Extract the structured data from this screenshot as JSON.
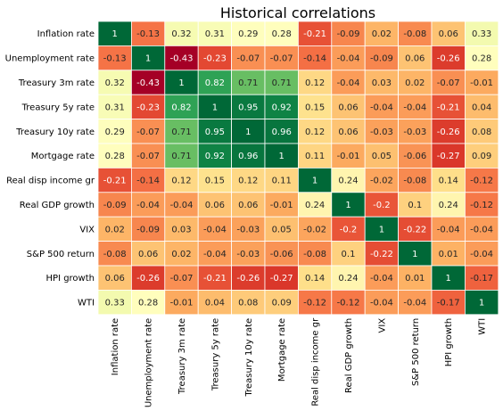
{
  "chart_data": {
    "type": "heatmap",
    "title": "Historical correlations",
    "row_labels": [
      "Inflation rate",
      "Unemployment rate",
      "Treasury 3m rate",
      "Treasury 5y rate",
      "Treasury 10y rate",
      "Mortgage rate",
      "Real disp income gr",
      "Real GDP growth",
      "VIX",
      "S&P 500 return",
      "HPI growth",
      "WTI"
    ],
    "col_labels": [
      "Inflation rate",
      "Unemployment rate",
      "Treasury 3m rate",
      "Treasury 5y rate",
      "Treasury 10y rate",
      "Mortgage rate",
      "Real disp income gr",
      "Real GDP growth",
      "VIX",
      "S&P 500 return",
      "HPI growth",
      "WTI"
    ],
    "values": [
      [
        1,
        -0.13,
        0.32,
        0.31,
        0.29,
        0.28,
        -0.21,
        -0.09,
        0.02,
        -0.08,
        0.06,
        0.33
      ],
      [
        -0.13,
        1,
        -0.43,
        -0.23,
        -0.07,
        -0.07,
        -0.14,
        -0.04,
        -0.09,
        0.06,
        -0.26,
        0.28
      ],
      [
        0.32,
        -0.43,
        1,
        0.82,
        0.71,
        0.71,
        0.12,
        -0.04,
        0.03,
        0.02,
        -0.07,
        -0.01
      ],
      [
        0.31,
        -0.23,
        0.82,
        1,
        0.95,
        0.92,
        0.15,
        0.06,
        -0.04,
        -0.04,
        -0.21,
        0.04
      ],
      [
        0.29,
        -0.07,
        0.71,
        0.95,
        1,
        0.96,
        0.12,
        0.06,
        -0.03,
        -0.03,
        -0.26,
        0.08
      ],
      [
        0.28,
        -0.07,
        0.71,
        0.92,
        0.96,
        1,
        0.11,
        -0.01,
        0.05,
        -0.06,
        -0.27,
        0.09
      ],
      [
        -0.21,
        -0.14,
        0.12,
        0.15,
        0.12,
        0.11,
        1,
        0.24,
        -0.02,
        -0.08,
        0.14,
        -0.12
      ],
      [
        -0.09,
        -0.04,
        -0.04,
        0.06,
        0.06,
        -0.01,
        0.24,
        1,
        -0.2,
        0.1,
        0.24,
        -0.12
      ],
      [
        0.02,
        -0.09,
        0.03,
        -0.04,
        -0.03,
        0.05,
        -0.02,
        -0.2,
        1,
        -0.22,
        -0.04,
        -0.04
      ],
      [
        -0.08,
        0.06,
        0.02,
        -0.04,
        -0.03,
        -0.06,
        -0.08,
        0.1,
        -0.22,
        1,
        0.01,
        -0.04
      ],
      [
        0.06,
        -0.26,
        -0.07,
        -0.21,
        -0.26,
        -0.27,
        0.14,
        0.24,
        -0.04,
        0.01,
        1,
        -0.17
      ],
      [
        0.33,
        0.28,
        -0.01,
        0.04,
        0.08,
        0.09,
        -0.12,
        -0.12,
        -0.04,
        -0.04,
        -0.17,
        1
      ]
    ],
    "value_range": [
      -0.43,
      1
    ],
    "colormap": "RdYlGn",
    "annotated": true,
    "colors": {
      "low": "#a50026",
      "high": "#006837",
      "cell_border": "#ffffff"
    }
  }
}
